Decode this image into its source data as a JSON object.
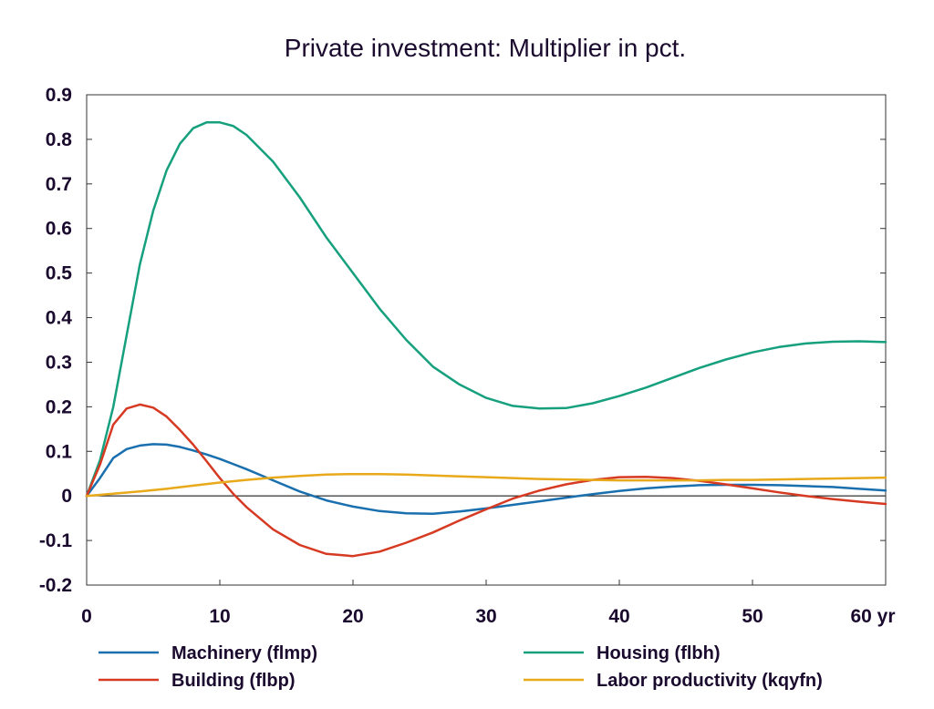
{
  "chart_data": {
    "type": "line",
    "title": "Private investment: Multiplier in pct.",
    "xlabel": "",
    "ylabel": "",
    "x_unit_label": "yr",
    "xlim": [
      0,
      60
    ],
    "ylim": [
      -0.2,
      0.9
    ],
    "x_ticks": [
      0,
      10,
      20,
      30,
      40,
      50,
      60
    ],
    "x_tick_labels": [
      "0",
      "10",
      "20",
      "30",
      "40",
      "50",
      "60 yr"
    ],
    "y_ticks": [
      -0.2,
      -0.1,
      0,
      0.1,
      0.2,
      0.3,
      0.4,
      0.5,
      0.6,
      0.7,
      0.8,
      0.9
    ],
    "y_tick_labels": [
      "-0.2",
      "-0.1",
      "0",
      "0.1",
      "0.2",
      "0.3",
      "0.4",
      "0.5",
      "0.6",
      "0.7",
      "0.8",
      "0.9"
    ],
    "grid": false,
    "zero_line": true,
    "legend_position": "bottom",
    "series": [
      {
        "name": "Machinery (flmp)",
        "color": "#1a6fae",
        "points": [
          [
            0,
            0
          ],
          [
            1,
            0.04
          ],
          [
            2,
            0.085
          ],
          [
            3,
            0.105
          ],
          [
            4,
            0.113
          ],
          [
            5,
            0.116
          ],
          [
            6,
            0.115
          ],
          [
            7,
            0.11
          ],
          [
            8,
            0.102
          ],
          [
            9,
            0.093
          ],
          [
            10,
            0.083
          ],
          [
            12,
            0.06
          ],
          [
            14,
            0.035
          ],
          [
            16,
            0.01
          ],
          [
            18,
            -0.01
          ],
          [
            20,
            -0.024
          ],
          [
            22,
            -0.034
          ],
          [
            24,
            -0.039
          ],
          [
            26,
            -0.04
          ],
          [
            28,
            -0.035
          ],
          [
            30,
            -0.028
          ],
          [
            32,
            -0.02
          ],
          [
            34,
            -0.012
          ],
          [
            36,
            -0.004
          ],
          [
            38,
            0.004
          ],
          [
            40,
            0.011
          ],
          [
            42,
            0.017
          ],
          [
            44,
            0.021
          ],
          [
            46,
            0.024
          ],
          [
            48,
            0.025
          ],
          [
            50,
            0.025
          ],
          [
            52,
            0.024
          ],
          [
            54,
            0.022
          ],
          [
            56,
            0.02
          ],
          [
            58,
            0.016
          ],
          [
            60,
            0.012
          ]
        ]
      },
      {
        "name": "Housing (flbh)",
        "color": "#16a07e",
        "points": [
          [
            0,
            0
          ],
          [
            1,
            0.08
          ],
          [
            2,
            0.2
          ],
          [
            3,
            0.36
          ],
          [
            4,
            0.52
          ],
          [
            5,
            0.64
          ],
          [
            6,
            0.73
          ],
          [
            7,
            0.79
          ],
          [
            8,
            0.825
          ],
          [
            9,
            0.838
          ],
          [
            10,
            0.838
          ],
          [
            11,
            0.83
          ],
          [
            12,
            0.81
          ],
          [
            14,
            0.75
          ],
          [
            16,
            0.67
          ],
          [
            18,
            0.58
          ],
          [
            20,
            0.5
          ],
          [
            22,
            0.42
          ],
          [
            24,
            0.35
          ],
          [
            26,
            0.29
          ],
          [
            28,
            0.25
          ],
          [
            30,
            0.22
          ],
          [
            32,
            0.202
          ],
          [
            34,
            0.196
          ],
          [
            36,
            0.197
          ],
          [
            38,
            0.208
          ],
          [
            40,
            0.224
          ],
          [
            42,
            0.243
          ],
          [
            44,
            0.265
          ],
          [
            46,
            0.287
          ],
          [
            48,
            0.306
          ],
          [
            50,
            0.322
          ],
          [
            52,
            0.334
          ],
          [
            54,
            0.342
          ],
          [
            56,
            0.346
          ],
          [
            58,
            0.347
          ],
          [
            60,
            0.345
          ]
        ]
      },
      {
        "name": "Building (flbp)",
        "color": "#d63a22",
        "points": [
          [
            0,
            0
          ],
          [
            1,
            0.07
          ],
          [
            2,
            0.16
          ],
          [
            3,
            0.196
          ],
          [
            4,
            0.205
          ],
          [
            5,
            0.198
          ],
          [
            6,
            0.178
          ],
          [
            7,
            0.148
          ],
          [
            8,
            0.115
          ],
          [
            9,
            0.078
          ],
          [
            10,
            0.04
          ],
          [
            11,
            0.005
          ],
          [
            12,
            -0.025
          ],
          [
            14,
            -0.075
          ],
          [
            16,
            -0.11
          ],
          [
            18,
            -0.13
          ],
          [
            20,
            -0.135
          ],
          [
            22,
            -0.125
          ],
          [
            24,
            -0.105
          ],
          [
            26,
            -0.082
          ],
          [
            28,
            -0.055
          ],
          [
            30,
            -0.03
          ],
          [
            32,
            -0.006
          ],
          [
            34,
            0.012
          ],
          [
            36,
            0.026
          ],
          [
            38,
            0.036
          ],
          [
            40,
            0.042
          ],
          [
            42,
            0.043
          ],
          [
            44,
            0.04
          ],
          [
            46,
            0.034
          ],
          [
            48,
            0.026
          ],
          [
            50,
            0.017
          ],
          [
            52,
            0.008
          ],
          [
            54,
            0.0
          ],
          [
            56,
            -0.007
          ],
          [
            58,
            -0.013
          ],
          [
            60,
            -0.018
          ]
        ]
      },
      {
        "name": "Labor productivity (kqyfn)",
        "color": "#e8a91a",
        "points": [
          [
            0,
            0
          ],
          [
            2,
            0.005
          ],
          [
            4,
            0.01
          ],
          [
            6,
            0.016
          ],
          [
            8,
            0.023
          ],
          [
            10,
            0.03
          ],
          [
            12,
            0.036
          ],
          [
            14,
            0.041
          ],
          [
            16,
            0.045
          ],
          [
            18,
            0.048
          ],
          [
            20,
            0.049
          ],
          [
            22,
            0.049
          ],
          [
            24,
            0.048
          ],
          [
            26,
            0.046
          ],
          [
            28,
            0.044
          ],
          [
            30,
            0.042
          ],
          [
            32,
            0.04
          ],
          [
            34,
            0.038
          ],
          [
            36,
            0.037
          ],
          [
            38,
            0.036
          ],
          [
            40,
            0.035
          ],
          [
            42,
            0.035
          ],
          [
            44,
            0.035
          ],
          [
            46,
            0.035
          ],
          [
            48,
            0.036
          ],
          [
            50,
            0.036
          ],
          [
            52,
            0.037
          ],
          [
            54,
            0.038
          ],
          [
            56,
            0.039
          ],
          [
            58,
            0.04
          ],
          [
            60,
            0.041
          ]
        ]
      }
    ]
  }
}
